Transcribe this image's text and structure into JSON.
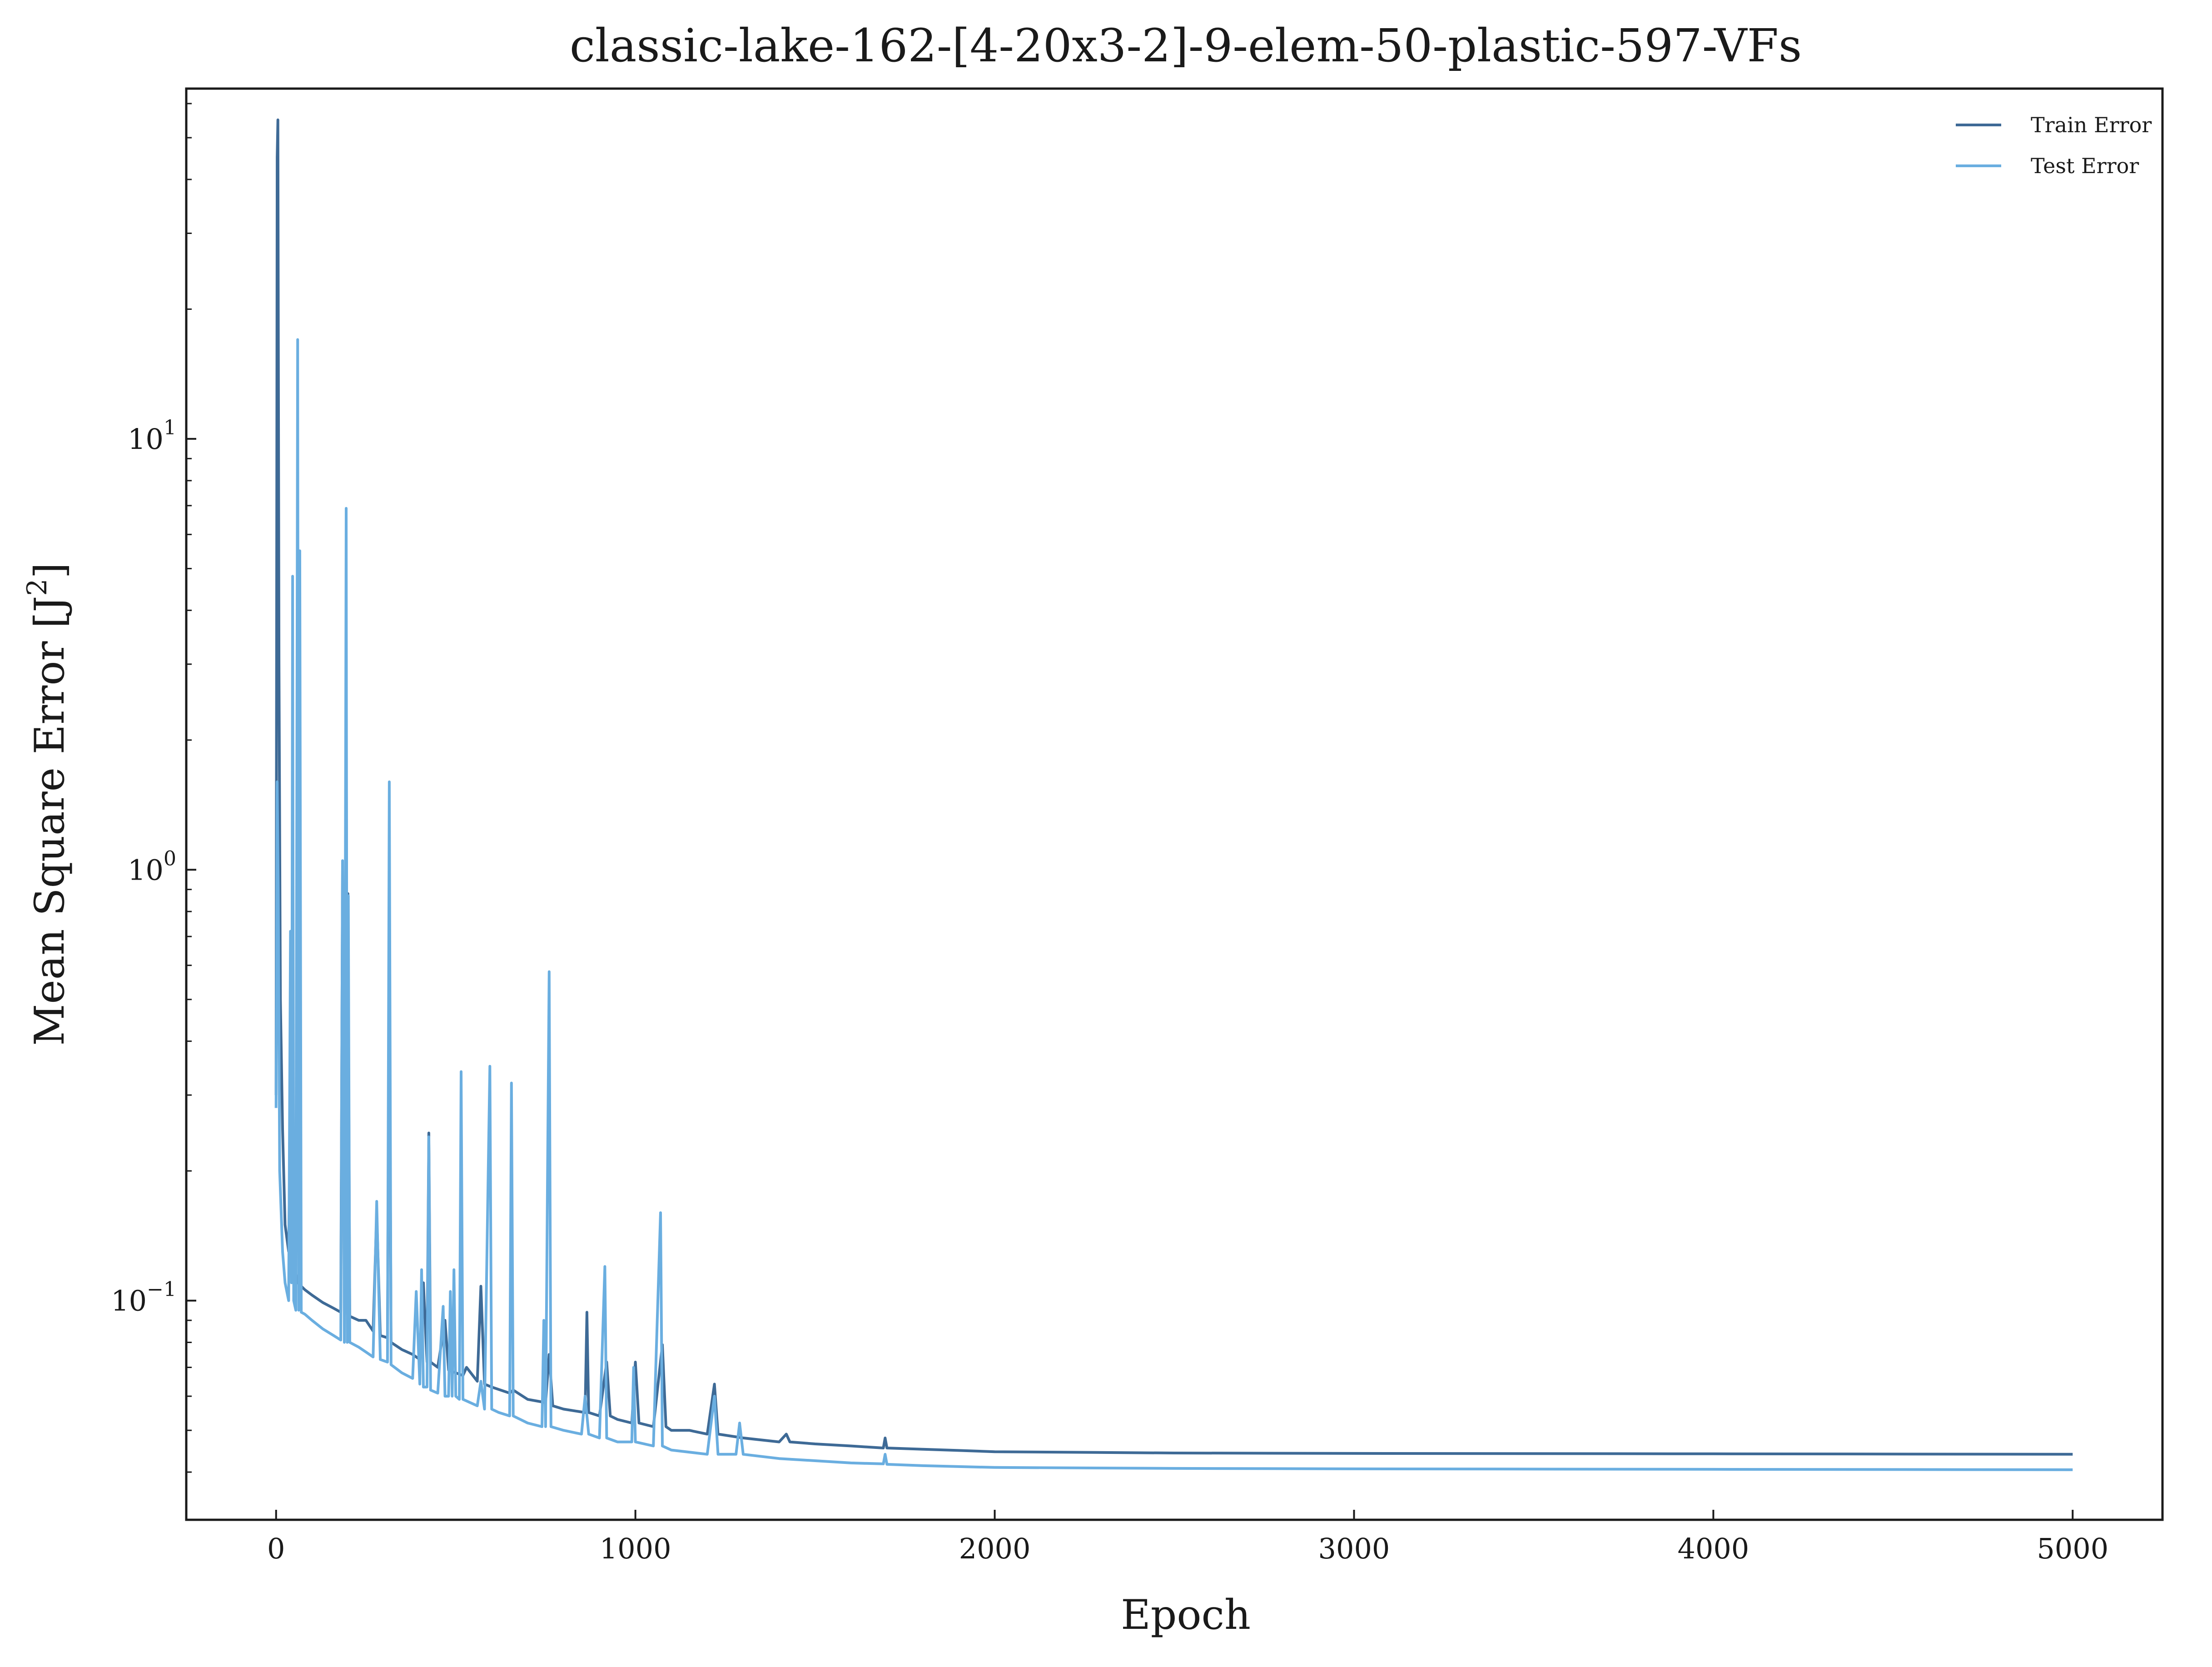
{
  "chart_data": {
    "type": "line",
    "title": "classic-lake-162-[4-20x3-2]-9-elem-50-plastic-597-VFs",
    "xlabel": "Epoch",
    "ylabel_main": "Mean Square Error [J",
    "ylabel_sup": "2",
    "ylabel_close": "]",
    "xlim": [
      -250,
      5250
    ],
    "ylim": [
      0.031,
      65
    ],
    "yscale": "log",
    "grid": false,
    "legend_position": "top-right",
    "x_ticks": [
      {
        "value": 0,
        "label": "0"
      },
      {
        "value": 1000,
        "label": "1000"
      },
      {
        "value": 2000,
        "label": "2000"
      },
      {
        "value": 3000,
        "label": "3000"
      },
      {
        "value": 4000,
        "label": "4000"
      },
      {
        "value": 5000,
        "label": "5000"
      }
    ],
    "y_ticks": [
      {
        "value": 0.1,
        "base": "10",
        "exp": "−1"
      },
      {
        "value": 1,
        "base": "10",
        "exp": "0"
      },
      {
        "value": 10,
        "base": "10",
        "exp": "1"
      }
    ],
    "series": [
      {
        "name": "Train Error",
        "color": "#3e6a96",
        "points": [
          [
            0,
            0.3
          ],
          [
            3,
            45
          ],
          [
            5,
            55
          ],
          [
            8,
            3.0
          ],
          [
            12,
            0.5
          ],
          [
            18,
            0.25
          ],
          [
            25,
            0.15
          ],
          [
            35,
            0.13
          ],
          [
            45,
            0.75
          ],
          [
            50,
            0.12
          ],
          [
            60,
            0.11
          ],
          [
            70,
            0.108
          ],
          [
            80,
            0.106
          ],
          [
            100,
            0.103
          ],
          [
            130,
            0.099
          ],
          [
            160,
            0.096
          ],
          [
            180,
            0.094
          ],
          [
            185,
            1.0
          ],
          [
            190,
            0.094
          ],
          [
            195,
            3.4
          ],
          [
            198,
            0.093
          ],
          [
            200,
            0.88
          ],
          [
            205,
            0.092
          ],
          [
            230,
            0.09
          ],
          [
            250,
            0.09
          ],
          [
            270,
            0.085
          ],
          [
            280,
            0.16
          ],
          [
            290,
            0.083
          ],
          [
            310,
            0.082
          ],
          [
            315,
            0.68
          ],
          [
            320,
            0.08
          ],
          [
            350,
            0.077
          ],
          [
            380,
            0.075
          ],
          [
            400,
            0.073
          ],
          [
            410,
            0.11
          ],
          [
            420,
            0.072
          ],
          [
            425,
            0.245
          ],
          [
            430,
            0.072
          ],
          [
            450,
            0.07
          ],
          [
            470,
            0.09
          ],
          [
            480,
            0.069
          ],
          [
            500,
            0.068
          ],
          [
            520,
            0.067
          ],
          [
            530,
            0.07
          ],
          [
            560,
            0.065
          ],
          [
            570,
            0.108
          ],
          [
            580,
            0.064
          ],
          [
            600,
            0.063
          ],
          [
            650,
            0.061
          ],
          [
            660,
            0.062
          ],
          [
            700,
            0.059
          ],
          [
            750,
            0.058
          ],
          [
            760,
            0.075
          ],
          [
            770,
            0.057
          ],
          [
            800,
            0.056
          ],
          [
            860,
            0.055
          ],
          [
            865,
            0.094
          ],
          [
            870,
            0.055
          ],
          [
            900,
            0.054
          ],
          [
            920,
            0.072
          ],
          [
            930,
            0.054
          ],
          [
            950,
            0.053
          ],
          [
            990,
            0.052
          ],
          [
            1000,
            0.072
          ],
          [
            1010,
            0.052
          ],
          [
            1050,
            0.051
          ],
          [
            1075,
            0.079
          ],
          [
            1085,
            0.051
          ],
          [
            1100,
            0.05
          ],
          [
            1150,
            0.05
          ],
          [
            1200,
            0.049
          ],
          [
            1220,
            0.064
          ],
          [
            1230,
            0.049
          ],
          [
            1300,
            0.048
          ],
          [
            1400,
            0.047
          ],
          [
            1420,
            0.049
          ],
          [
            1430,
            0.047
          ],
          [
            1500,
            0.0465
          ],
          [
            1600,
            0.046
          ],
          [
            1690,
            0.0455
          ],
          [
            1695,
            0.048
          ],
          [
            1700,
            0.0455
          ],
          [
            1800,
            0.0452
          ],
          [
            1900,
            0.0449
          ],
          [
            2000,
            0.0446
          ],
          [
            2500,
            0.0443
          ],
          [
            3000,
            0.0442
          ],
          [
            4000,
            0.0441
          ],
          [
            5000,
            0.044
          ]
        ]
      },
      {
        "name": "Test Error",
        "color": "#6aaee0",
        "points": [
          [
            0,
            0.28
          ],
          [
            3,
            1.6
          ],
          [
            6,
            0.9
          ],
          [
            10,
            0.2
          ],
          [
            18,
            0.13
          ],
          [
            25,
            0.11
          ],
          [
            35,
            0.1
          ],
          [
            40,
            0.72
          ],
          [
            43,
            0.11
          ],
          [
            46,
            4.8
          ],
          [
            49,
            0.1
          ],
          [
            55,
            0.095
          ],
          [
            60,
            17
          ],
          [
            63,
            0.095
          ],
          [
            66,
            5.5
          ],
          [
            70,
            0.094
          ],
          [
            80,
            0.093
          ],
          [
            100,
            0.09
          ],
          [
            130,
            0.086
          ],
          [
            160,
            0.083
          ],
          [
            180,
            0.081
          ],
          [
            185,
            1.05
          ],
          [
            190,
            0.08
          ],
          [
            195,
            6.9
          ],
          [
            198,
            0.08
          ],
          [
            201,
            0.87
          ],
          [
            205,
            0.08
          ],
          [
            230,
            0.078
          ],
          [
            250,
            0.076
          ],
          [
            270,
            0.074
          ],
          [
            280,
            0.17
          ],
          [
            290,
            0.073
          ],
          [
            310,
            0.072
          ],
          [
            315,
            1.6
          ],
          [
            320,
            0.071
          ],
          [
            350,
            0.068
          ],
          [
            380,
            0.066
          ],
          [
            390,
            0.105
          ],
          [
            400,
            0.064
          ],
          [
            405,
            0.118
          ],
          [
            410,
            0.063
          ],
          [
            420,
            0.063
          ],
          [
            425,
            0.24
          ],
          [
            430,
            0.062
          ],
          [
            450,
            0.061
          ],
          [
            465,
            0.097
          ],
          [
            470,
            0.06
          ],
          [
            480,
            0.06
          ],
          [
            485,
            0.105
          ],
          [
            490,
            0.06
          ],
          [
            495,
            0.118
          ],
          [
            500,
            0.06
          ],
          [
            510,
            0.059
          ],
          [
            515,
            0.34
          ],
          [
            520,
            0.059
          ],
          [
            540,
            0.058
          ],
          [
            560,
            0.057
          ],
          [
            570,
            0.065
          ],
          [
            580,
            0.056
          ],
          [
            595,
            0.35
          ],
          [
            600,
            0.056
          ],
          [
            620,
            0.055
          ],
          [
            650,
            0.054
          ],
          [
            655,
            0.32
          ],
          [
            660,
            0.054
          ],
          [
            700,
            0.052
          ],
          [
            740,
            0.051
          ],
          [
            745,
            0.09
          ],
          [
            750,
            0.051
          ],
          [
            760,
            0.58
          ],
          [
            765,
            0.051
          ],
          [
            800,
            0.05
          ],
          [
            850,
            0.049
          ],
          [
            860,
            0.06
          ],
          [
            870,
            0.049
          ],
          [
            900,
            0.048
          ],
          [
            915,
            0.12
          ],
          [
            920,
            0.048
          ],
          [
            950,
            0.047
          ],
          [
            990,
            0.047
          ],
          [
            995,
            0.07
          ],
          [
            1000,
            0.047
          ],
          [
            1050,
            0.046
          ],
          [
            1070,
            0.16
          ],
          [
            1075,
            0.046
          ],
          [
            1100,
            0.045
          ],
          [
            1200,
            0.044
          ],
          [
            1220,
            0.06
          ],
          [
            1230,
            0.044
          ],
          [
            1280,
            0.044
          ],
          [
            1290,
            0.052
          ],
          [
            1300,
            0.044
          ],
          [
            1400,
            0.043
          ],
          [
            1500,
            0.0425
          ],
          [
            1600,
            0.042
          ],
          [
            1690,
            0.0418
          ],
          [
            1695,
            0.044
          ],
          [
            1700,
            0.0417
          ],
          [
            1800,
            0.0414
          ],
          [
            2000,
            0.041
          ],
          [
            2500,
            0.0408
          ],
          [
            3000,
            0.0407
          ],
          [
            4000,
            0.0406
          ],
          [
            5000,
            0.0405
          ]
        ]
      }
    ]
  }
}
